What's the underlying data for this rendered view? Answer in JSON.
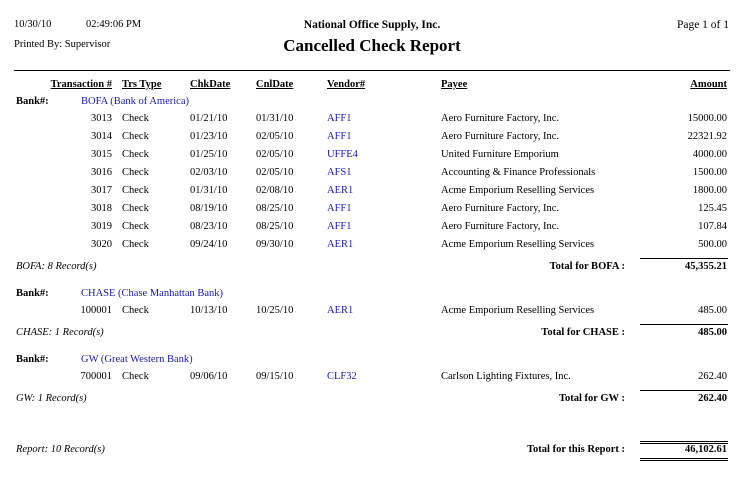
{
  "header": {
    "date": "10/30/10",
    "time": "02:49:06 PM",
    "company": "National Office Supply, Inc.",
    "page": "Page 1 of 1",
    "printed_by": "Printed By: Supervisor",
    "title": "Cancelled Check Report"
  },
  "columns": [
    "Transaction #",
    "Trs Type",
    "ChkDate",
    "CnlDate",
    "Vendor#",
    "Payee",
    "Amount"
  ],
  "groups": [
    {
      "bank_label": "Bank#:",
      "bank": "BOFA (Bank of America)",
      "rows": [
        [
          "3013",
          "Check",
          "01/21/10",
          "01/31/10",
          "AFF1",
          "Aero Furniture Factory, Inc.",
          "15000.00"
        ],
        [
          "3014",
          "Check",
          "01/23/10",
          "02/05/10",
          "AFF1",
          "Aero Furniture Factory, Inc.",
          "22321.92"
        ],
        [
          "3015",
          "Check",
          "01/25/10",
          "02/05/10",
          "UFFE4",
          "United Furniture Emporium",
          "4000.00"
        ],
        [
          "3016",
          "Check",
          "02/03/10",
          "02/05/10",
          "AFS1",
          "Accounting & Finance Professionals",
          "1500.00"
        ],
        [
          "3017",
          "Check",
          "01/31/10",
          "02/08/10",
          "AER1",
          "Acme Emporium Reselling Services",
          "1800.00"
        ],
        [
          "3018",
          "Check",
          "08/19/10",
          "08/25/10",
          "AFF1",
          "Aero Furniture Factory, Inc.",
          "125.45"
        ],
        [
          "3019",
          "Check",
          "08/23/10",
          "08/25/10",
          "AFF1",
          "Aero Furniture Factory, Inc.",
          "107.84"
        ],
        [
          "3020",
          "Check",
          "09/24/10",
          "09/30/10",
          "AER1",
          "Acme Emporium Reselling Services",
          "500.00"
        ]
      ],
      "record_count": "BOFA: 8 Record(s)",
      "total_label": "Total for BOFA :",
      "total": "45,355.21"
    },
    {
      "bank_label": "Bank#:",
      "bank": "CHASE (Chase Manhattan Bank)",
      "rows": [
        [
          "100001",
          "Check",
          "10/13/10",
          "10/25/10",
          "AER1",
          "Acme Emporium Reselling Services",
          "485.00"
        ]
      ],
      "record_count": "CHASE: 1 Record(s)",
      "total_label": "Total for CHASE :",
      "total": "485.00"
    },
    {
      "bank_label": "Bank#:",
      "bank": "GW (Great Western Bank)",
      "rows": [
        [
          "700001",
          "Check",
          "09/06/10",
          "09/15/10",
          "CLF32",
          "Carlson Lighting Fixtures, Inc.",
          "262.40"
        ]
      ],
      "record_count": "GW: 1 Record(s)",
      "total_label": "Total for GW :",
      "total": "262.40"
    }
  ],
  "report": {
    "record_count": "Report: 10 Record(s)",
    "total_label": "Total for this Report :",
    "total": "46,102.61"
  }
}
